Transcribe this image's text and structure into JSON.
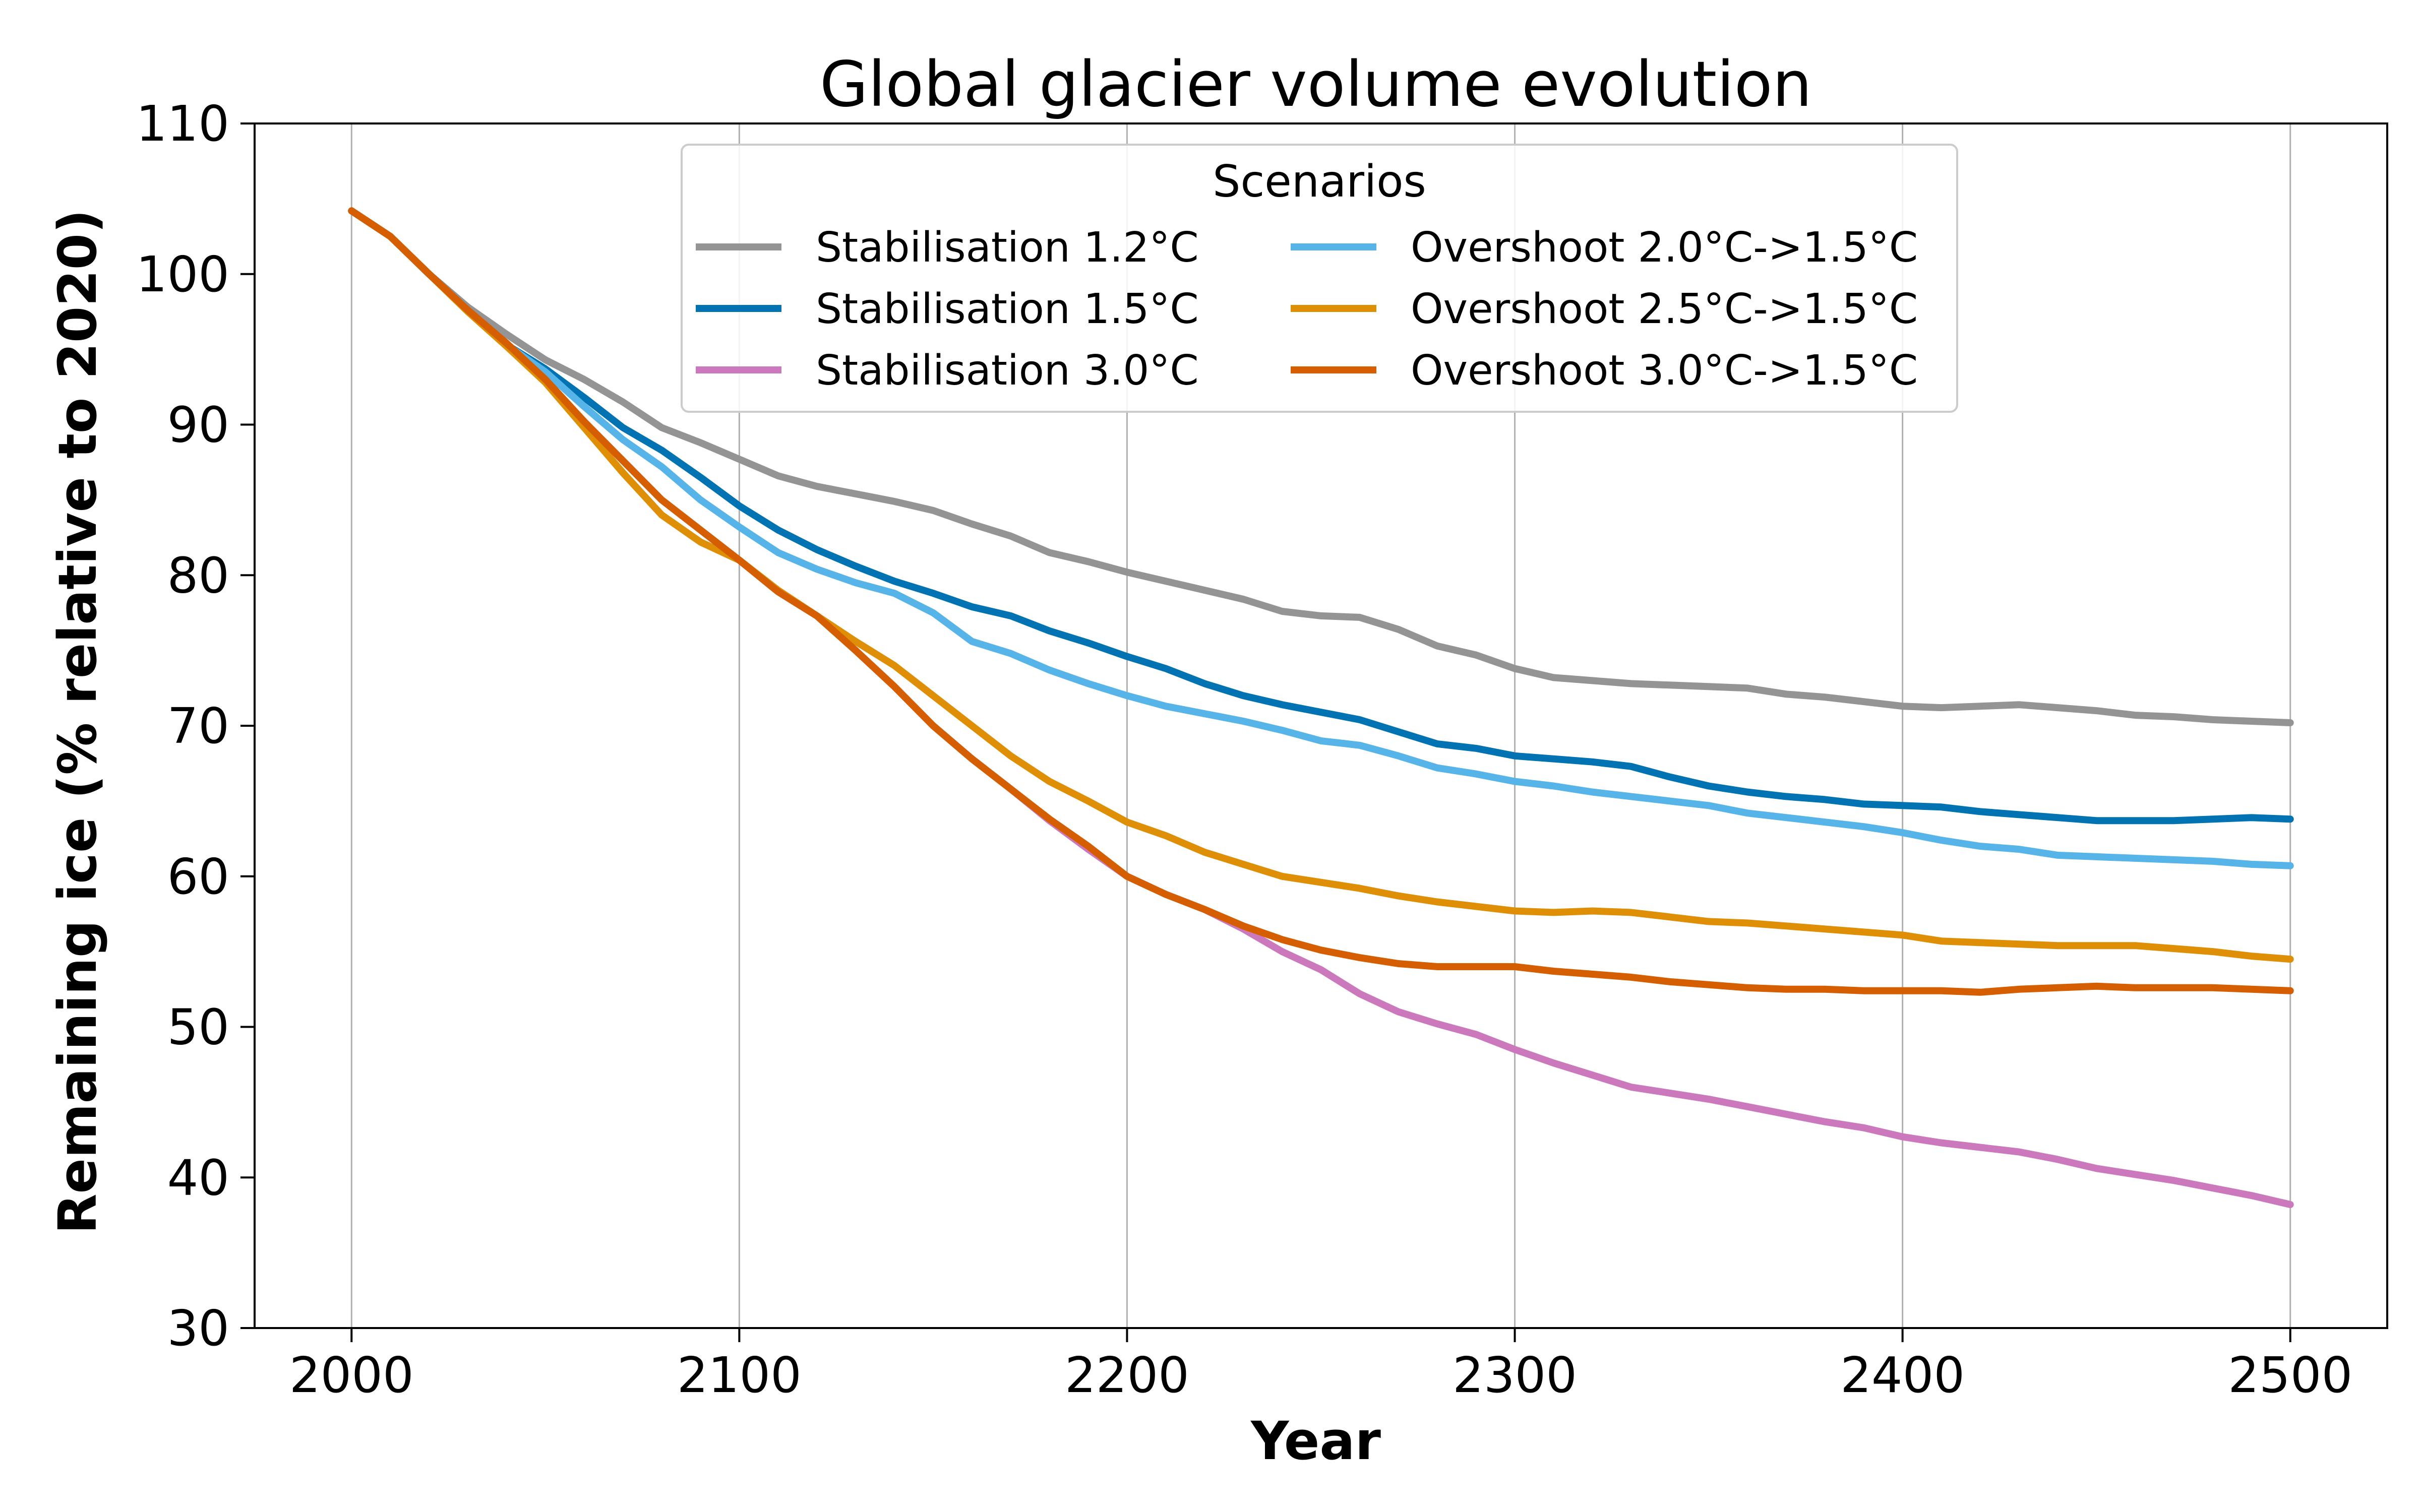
{
  "chart_data": {
    "type": "line",
    "title": "Global glacier volume evolution",
    "xlabel": "Year",
    "ylabel": "Remaining ice (% relative to 2020)",
    "xlim": [
      1975,
      2525
    ],
    "ylim": [
      30,
      110
    ],
    "xticks": [
      2000,
      2100,
      2200,
      2300,
      2400,
      2500
    ],
    "yticks": [
      30,
      40,
      50,
      60,
      70,
      80,
      90,
      100,
      110
    ],
    "grid": "vertical",
    "legend": {
      "title": "Scenarios",
      "placement": "top-center",
      "columns": 2
    },
    "series": [
      {
        "name": "Stabilisation 1.2°C",
        "color": "#949494",
        "x": [
          2000,
          2010,
          2020,
          2030,
          2040,
          2050,
          2060,
          2070,
          2080,
          2090,
          2100,
          2110,
          2120,
          2130,
          2140,
          2150,
          2160,
          2170,
          2180,
          2190,
          2200,
          2210,
          2220,
          2230,
          2240,
          2250,
          2260,
          2270,
          2280,
          2290,
          2300,
          2310,
          2320,
          2330,
          2340,
          2350,
          2360,
          2370,
          2380,
          2390,
          2400,
          2410,
          2420,
          2430,
          2440,
          2450,
          2460,
          2470,
          2480,
          2490,
          2500
        ],
        "y": [
          104.2,
          102.5,
          100.0,
          97.8,
          96.0,
          94.3,
          93.0,
          91.5,
          89.8,
          88.8,
          87.7,
          86.6,
          85.9,
          85.4,
          84.9,
          84.3,
          83.4,
          82.6,
          81.5,
          80.9,
          80.2,
          79.6,
          79.0,
          78.4,
          77.6,
          77.3,
          77.2,
          76.4,
          75.3,
          74.7,
          73.8,
          73.2,
          73.0,
          72.8,
          72.7,
          72.6,
          72.5,
          72.1,
          71.9,
          71.6,
          71.3,
          71.2,
          71.3,
          71.4,
          71.2,
          71.0,
          70.7,
          70.6,
          70.4,
          70.3,
          70.2
        ]
      },
      {
        "name": "Stabilisation 1.5°C",
        "color": "#0173b2",
        "x": [
          2000,
          2010,
          2020,
          2030,
          2040,
          2050,
          2060,
          2070,
          2080,
          2090,
          2100,
          2110,
          2120,
          2130,
          2140,
          2150,
          2160,
          2170,
          2180,
          2190,
          2200,
          2210,
          2220,
          2230,
          2240,
          2250,
          2260,
          2270,
          2280,
          2290,
          2300,
          2310,
          2320,
          2330,
          2340,
          2350,
          2360,
          2370,
          2380,
          2390,
          2400,
          2410,
          2420,
          2430,
          2440,
          2450,
          2460,
          2470,
          2480,
          2490,
          2500
        ],
        "y": [
          104.2,
          102.5,
          100.0,
          97.6,
          95.3,
          93.7,
          91.8,
          89.8,
          88.3,
          86.5,
          84.6,
          83.0,
          81.7,
          80.6,
          79.6,
          78.8,
          77.9,
          77.3,
          76.3,
          75.5,
          74.6,
          73.8,
          72.8,
          72.0,
          71.4,
          70.9,
          70.4,
          69.6,
          68.8,
          68.5,
          68.0,
          67.8,
          67.6,
          67.3,
          66.6,
          66.0,
          65.6,
          65.3,
          65.1,
          64.8,
          64.7,
          64.6,
          64.3,
          64.1,
          63.9,
          63.7,
          63.7,
          63.7,
          63.8,
          63.9,
          63.8
        ]
      },
      {
        "name": "Stabilisation 3.0°C",
        "color": "#cc78bc",
        "x": [
          2000,
          2010,
          2020,
          2030,
          2040,
          2050,
          2060,
          2070,
          2080,
          2090,
          2100,
          2110,
          2120,
          2130,
          2140,
          2150,
          2160,
          2170,
          2180,
          2190,
          2200,
          2210,
          2220,
          2230,
          2240,
          2250,
          2260,
          2270,
          2280,
          2290,
          2300,
          2310,
          2320,
          2330,
          2340,
          2350,
          2360,
          2370,
          2380,
          2390,
          2400,
          2410,
          2420,
          2430,
          2440,
          2450,
          2460,
          2470,
          2480,
          2490,
          2500
        ],
        "y": [
          104.2,
          102.5,
          100.0,
          97.6,
          95.4,
          93.0,
          90.2,
          87.6,
          85.0,
          83.0,
          81.0,
          78.9,
          77.3,
          75.0,
          72.6,
          70.0,
          67.8,
          65.8,
          63.7,
          61.8,
          60.0,
          58.8,
          57.8,
          56.5,
          55.0,
          53.8,
          52.2,
          51.0,
          50.2,
          49.5,
          48.5,
          47.6,
          46.8,
          46.0,
          45.6,
          45.2,
          44.7,
          44.2,
          43.7,
          43.3,
          42.7,
          42.3,
          42.0,
          41.7,
          41.2,
          40.6,
          40.2,
          39.8,
          39.3,
          38.8,
          38.2
        ]
      },
      {
        "name": "Overshoot 2.0°C->1.5°C",
        "color": "#56b4e9",
        "x": [
          2000,
          2010,
          2020,
          2030,
          2040,
          2050,
          2060,
          2070,
          2080,
          2090,
          2100,
          2110,
          2120,
          2130,
          2140,
          2150,
          2160,
          2170,
          2180,
          2190,
          2200,
          2210,
          2220,
          2230,
          2240,
          2250,
          2260,
          2270,
          2280,
          2290,
          2300,
          2310,
          2320,
          2330,
          2340,
          2350,
          2360,
          2370,
          2380,
          2390,
          2400,
          2410,
          2420,
          2430,
          2440,
          2450,
          2460,
          2470,
          2480,
          2490,
          2500
        ],
        "y": [
          104.2,
          102.5,
          100.0,
          97.6,
          95.3,
          93.5,
          91.2,
          89.0,
          87.2,
          85.0,
          83.2,
          81.5,
          80.4,
          79.5,
          78.8,
          77.5,
          75.6,
          74.8,
          73.7,
          72.8,
          72.0,
          71.3,
          70.8,
          70.3,
          69.7,
          69.0,
          68.7,
          68.0,
          67.2,
          66.8,
          66.3,
          66.0,
          65.6,
          65.3,
          65.0,
          64.7,
          64.2,
          63.9,
          63.6,
          63.3,
          62.9,
          62.4,
          62.0,
          61.8,
          61.4,
          61.3,
          61.2,
          61.1,
          61.0,
          60.8,
          60.7
        ]
      },
      {
        "name": "Overshoot 2.5°C->1.5°C",
        "color": "#de8f05",
        "x": [
          2000,
          2010,
          2020,
          2030,
          2040,
          2050,
          2060,
          2070,
          2080,
          2090,
          2100,
          2110,
          2120,
          2130,
          2140,
          2150,
          2160,
          2170,
          2180,
          2190,
          2200,
          2210,
          2220,
          2230,
          2240,
          2250,
          2260,
          2270,
          2280,
          2290,
          2300,
          2310,
          2320,
          2330,
          2340,
          2350,
          2360,
          2370,
          2380,
          2390,
          2400,
          2410,
          2420,
          2430,
          2440,
          2450,
          2460,
          2470,
          2480,
          2490,
          2500
        ],
        "y": [
          104.2,
          102.5,
          100.0,
          97.5,
          95.2,
          92.8,
          89.8,
          86.8,
          84.0,
          82.2,
          81.0,
          79.0,
          77.3,
          75.6,
          74.0,
          72.0,
          70.0,
          68.0,
          66.3,
          65.0,
          63.6,
          62.7,
          61.6,
          60.8,
          60.0,
          59.6,
          59.2,
          58.7,
          58.3,
          58.0,
          57.7,
          57.6,
          57.7,
          57.6,
          57.3,
          57.0,
          56.9,
          56.7,
          56.5,
          56.3,
          56.1,
          55.7,
          55.6,
          55.5,
          55.4,
          55.4,
          55.4,
          55.2,
          55.0,
          54.7,
          54.5
        ]
      },
      {
        "name": "Overshoot 3.0°C->1.5°C",
        "color": "#d55e00",
        "x": [
          2000,
          2010,
          2020,
          2030,
          2040,
          2050,
          2060,
          2070,
          2080,
          2090,
          2100,
          2110,
          2120,
          2130,
          2140,
          2150,
          2160,
          2170,
          2180,
          2190,
          2200,
          2210,
          2220,
          2230,
          2240,
          2250,
          2260,
          2270,
          2280,
          2290,
          2300,
          2310,
          2320,
          2330,
          2340,
          2350,
          2360,
          2370,
          2380,
          2390,
          2400,
          2410,
          2420,
          2430,
          2440,
          2450,
          2460,
          2470,
          2480,
          2490,
          2500
        ],
        "y": [
          104.2,
          102.5,
          100.0,
          97.6,
          95.4,
          93.0,
          90.2,
          87.6,
          85.0,
          83.0,
          81.0,
          78.9,
          77.3,
          75.0,
          72.6,
          70.0,
          67.8,
          65.8,
          63.8,
          62.0,
          60.0,
          58.8,
          57.8,
          56.7,
          55.8,
          55.1,
          54.6,
          54.2,
          54.0,
          54.0,
          54.0,
          53.7,
          53.5,
          53.3,
          53.0,
          52.8,
          52.6,
          52.5,
          52.5,
          52.4,
          52.4,
          52.4,
          52.3,
          52.5,
          52.6,
          52.7,
          52.6,
          52.6,
          52.6,
          52.5,
          52.4
        ]
      }
    ]
  }
}
